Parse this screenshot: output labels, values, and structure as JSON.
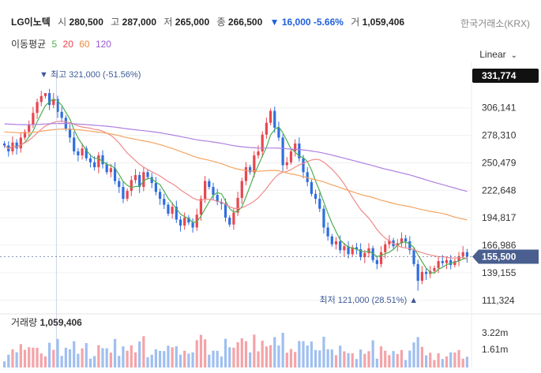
{
  "header": {
    "name": "LG이노텍",
    "open_label": "시",
    "open": "280,500",
    "high_label": "고",
    "high": "287,000",
    "low_label": "저",
    "low": "265,000",
    "close_label": "종",
    "close": "266,500",
    "change": "▼ 16,000 -5.66%",
    "volume_label": "거",
    "volume": "1,059,406",
    "exchange": "한국거래소(KRX)"
  },
  "ma_legend": {
    "label": "이동평균",
    "periods": [
      "5",
      "20",
      "60",
      "120"
    ]
  },
  "scale_mode": "Linear",
  "colors": {
    "up": "#e8464f",
    "down": "#2f6ee0",
    "ma5": "#4caf50",
    "ma20": "#f08a8a",
    "ma60": "#f4a460",
    "ma120": "#b07fe0",
    "badge": "#4a5f8f"
  },
  "chart_data": {
    "type": "candlestick",
    "price_ticks": [
      "306,141",
      "278,310",
      "250,479",
      "222,648",
      "194,817",
      "166,986",
      "139,155",
      "111,324"
    ],
    "price_tick_values": [
      306141,
      278310,
      250479,
      222648,
      194817,
      166986,
      139155,
      111324
    ],
    "ylim": [
      100000,
      345000
    ],
    "top_badge": "331,774",
    "current_badge": "155,500",
    "max_annotation": "▼ 최고 321,000 (-51.56%)",
    "min_annotation": "최저 121,000 (28.51%) ▲",
    "closes": [
      268000,
      262000,
      271000,
      265000,
      276000,
      282000,
      289000,
      301000,
      312000,
      318000,
      321000,
      309000,
      315000,
      302000,
      296000,
      285000,
      276000,
      262000,
      258000,
      265000,
      255000,
      251000,
      246000,
      258000,
      249000,
      241000,
      245000,
      232000,
      226000,
      214000,
      222000,
      233000,
      238000,
      226000,
      241000,
      236000,
      230000,
      221000,
      214000,
      208000,
      199000,
      206000,
      193000,
      187000,
      195000,
      190000,
      185000,
      198000,
      214000,
      232000,
      226000,
      218000,
      211000,
      209000,
      195000,
      188000,
      200000,
      215000,
      232000,
      246000,
      241000,
      258000,
      262000,
      279000,
      291000,
      303000,
      286000,
      276000,
      248000,
      251000,
      262000,
      270000,
      255000,
      241000,
      231000,
      219000,
      214000,
      204000,
      185000,
      176000,
      168000,
      171000,
      162000,
      166000,
      158000,
      165000,
      163000,
      155000,
      159000,
      164000,
      152000,
      148000,
      160000,
      168000,
      172000,
      166000,
      169000,
      174000,
      171000,
      162000,
      148000,
      131000,
      140000,
      138000,
      141000,
      144000,
      151000,
      149000,
      152000,
      147000,
      151000,
      156000,
      160000,
      155500
    ],
    "volume_ticks": [
      "3.22m",
      "1.61m"
    ],
    "volume_label": "거래량",
    "volume_value": "1,059,406"
  }
}
